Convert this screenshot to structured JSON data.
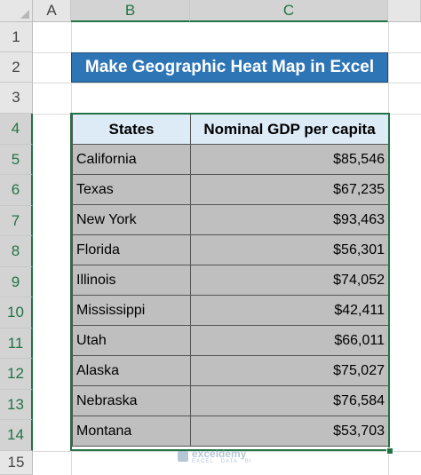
{
  "columns": [
    "A",
    "B",
    "C"
  ],
  "rows": [
    "1",
    "2",
    "3",
    "4",
    "5",
    "6",
    "7",
    "8",
    "9",
    "10",
    "11",
    "12",
    "13",
    "14",
    "15"
  ],
  "title": "Make Geographic Heat Map in Excel",
  "table": {
    "headers": [
      "States",
      "Nominal GDP per capita"
    ],
    "data": [
      {
        "state": "California",
        "gdp": "$85,546"
      },
      {
        "state": "Texas",
        "gdp": "$67,235"
      },
      {
        "state": "New York",
        "gdp": "$93,463"
      },
      {
        "state": "Florida",
        "gdp": "$56,301"
      },
      {
        "state": "Illinois",
        "gdp": "$74,052"
      },
      {
        "state": "Mississippi",
        "gdp": "$42,411"
      },
      {
        "state": "Utah",
        "gdp": "$66,011"
      },
      {
        "state": "Alaska",
        "gdp": "$75,027"
      },
      {
        "state": "Nebraska",
        "gdp": "$76,584"
      },
      {
        "state": "Montana",
        "gdp": "$53,703"
      }
    ]
  },
  "watermark": {
    "main": "exceldemy",
    "sub": "EXCEL · DATA · BI"
  },
  "colors": {
    "accent": "#217346",
    "title_bg": "#2e75b6",
    "header_bg": "#ddebf7",
    "cell_bg": "#bfbfbf"
  }
}
